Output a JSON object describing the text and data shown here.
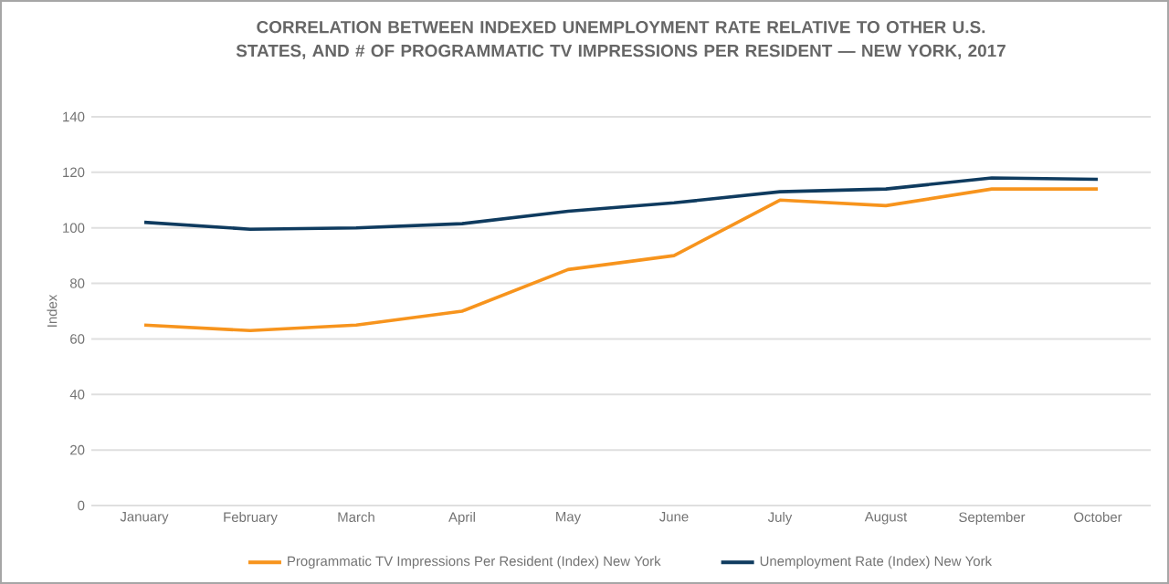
{
  "chart_data": {
    "type": "line",
    "title": "CORRELATION BETWEEN INDEXED UNEMPLOYMENT RATE  RELATIVE TO OTHER U.S. STATES, AND # OF PROGRAMMATIC TV IMPRESSIONS PER RESIDENT — NEW YORK, 2017",
    "ylabel": "Index",
    "categories": [
      "January",
      "February",
      "March",
      "April",
      "May",
      "June",
      "July",
      "August",
      "September",
      "October"
    ],
    "series": [
      {
        "name": "Programmatic TV Impressions Per Resident (Index) New York",
        "color": "#f7941d",
        "values": [
          65,
          63,
          65,
          70,
          85,
          90,
          110,
          108,
          114,
          114
        ]
      },
      {
        "name": "Unemployment Rate (Index) New York",
        "color": "#0f3b5f",
        "values": [
          102,
          99.5,
          100,
          101.5,
          106,
          109,
          113,
          114,
          118,
          117.5
        ]
      }
    ],
    "ylim": [
      0,
      140
    ],
    "yticks": [
      0,
      20,
      40,
      60,
      80,
      100,
      120,
      140
    ],
    "grid": "y",
    "legend": "bottom",
    "marker": "none",
    "line_style": "solid"
  }
}
